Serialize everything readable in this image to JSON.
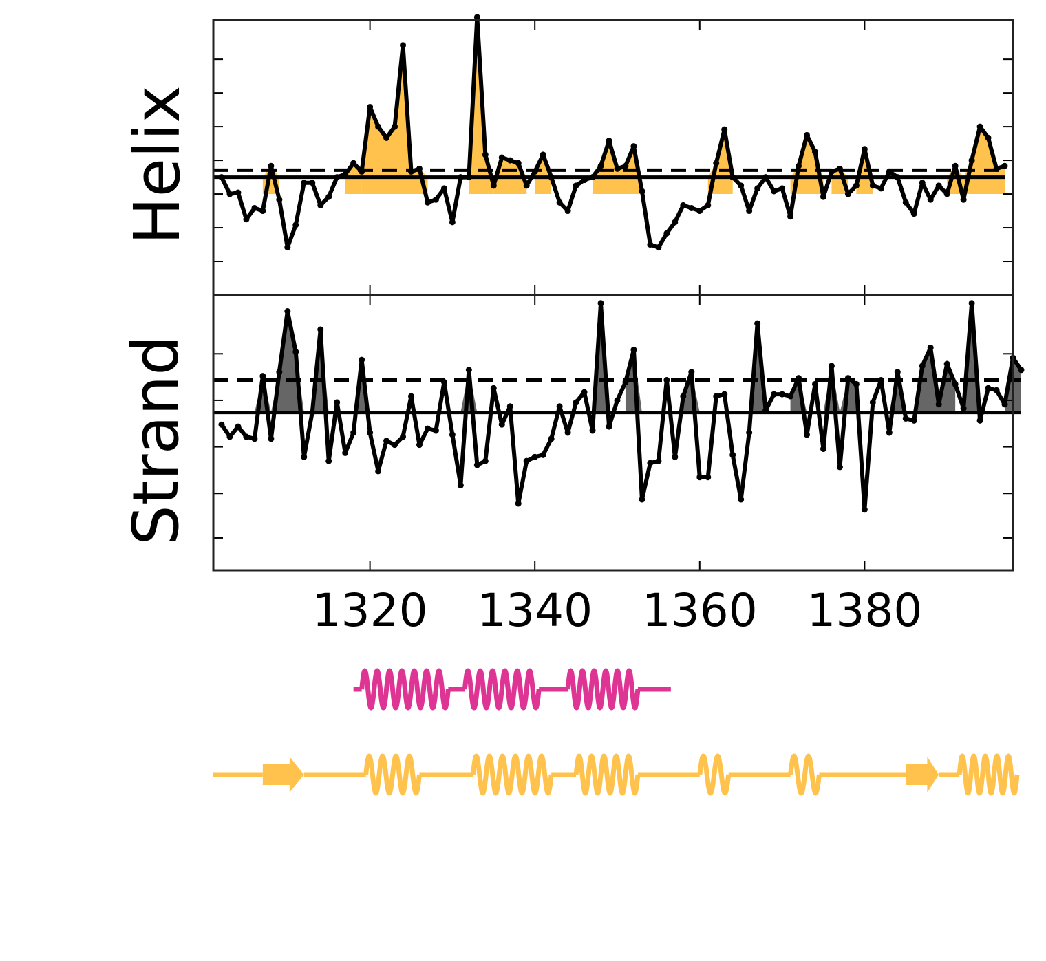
{
  "chart_data": [
    {
      "type": "line",
      "ylabel": "Helix",
      "colors": {
        "line": "#000000",
        "fill": "#ffc34d"
      },
      "xlim": [
        1301,
        1398
      ],
      "ylim": [
        -0.42,
        0.56
      ],
      "yticks": [
        -0.3,
        -0.18,
        -0.06,
        0.06,
        0.18,
        0.3,
        0.42
      ],
      "threshold_solid": 0.0,
      "threshold_dashed": 0.025,
      "x_start": 1302,
      "values": [
        0.0,
        -0.06,
        -0.055,
        -0.15,
        -0.11,
        -0.12,
        0.04,
        -0.08,
        -0.25,
        -0.17,
        -0.02,
        -0.02,
        -0.1,
        -0.07,
        0.0,
        0.01,
        0.05,
        0.02,
        0.25,
        0.18,
        0.14,
        0.18,
        0.47,
        0.02,
        0.03,
        -0.09,
        -0.08,
        -0.04,
        -0.16,
        0.0,
        0.0,
        0.57,
        0.08,
        -0.03,
        0.07,
        0.06,
        0.05,
        -0.03,
        0.02,
        0.08,
        0.0,
        -0.09,
        -0.12,
        -0.03,
        -0.01,
        0.0,
        0.04,
        0.13,
        0.03,
        0.04,
        0.11,
        -0.05,
        -0.24,
        -0.25,
        -0.2,
        -0.16,
        -0.1,
        -0.11,
        -0.12,
        -0.1,
        0.05,
        0.17,
        0.0,
        -0.03,
        -0.12,
        -0.04,
        0.0,
        -0.05,
        -0.04,
        -0.14,
        0.04,
        0.15,
        0.09,
        -0.07,
        0.02,
        0.03,
        -0.06,
        -0.03,
        0.1,
        -0.03,
        -0.04,
        0.02,
        0.0,
        -0.09,
        -0.13,
        -0.02,
        -0.08,
        -0.03,
        -0.06,
        0.04,
        -0.08,
        0.06,
        0.18,
        0.14,
        0.03,
        0.04
      ]
    },
    {
      "type": "line",
      "ylabel": "Strand",
      "colors": {
        "line": "#000000",
        "fill": "#666666"
      },
      "xlim": [
        1301,
        1398
      ],
      "ylim": [
        -0.78,
        0.58
      ],
      "yticks": [
        -0.62,
        -0.4,
        -0.17,
        0.06,
        0.29
      ],
      "threshold_solid": 0.0,
      "threshold_dashed": 0.16,
      "x_start": 1302,
      "values": [
        -0.06,
        -0.12,
        -0.07,
        -0.12,
        -0.13,
        0.18,
        -0.13,
        0.2,
        0.5,
        0.3,
        -0.22,
        0.0,
        0.41,
        -0.24,
        0.05,
        -0.2,
        -0.1,
        0.26,
        -0.1,
        -0.29,
        -0.14,
        -0.16,
        -0.12,
        0.08,
        -0.16,
        -0.08,
        -0.09,
        0.15,
        -0.11,
        -0.36,
        0.21,
        -0.26,
        -0.24,
        0.12,
        -0.06,
        0.03,
        -0.45,
        -0.24,
        -0.22,
        -0.21,
        -0.13,
        0.03,
        -0.1,
        0.05,
        0.1,
        -0.09,
        0.54,
        -0.07,
        0.06,
        0.15,
        0.31,
        -0.43,
        -0.25,
        -0.24,
        0.16,
        -0.22,
        0.08,
        0.2,
        -0.32,
        -0.32,
        0.08,
        0.09,
        -0.21,
        -0.43,
        -0.1,
        0.44,
        0.01,
        0.09,
        0.09,
        0.08,
        0.17,
        -0.11,
        0.14,
        -0.18,
        0.23,
        -0.27,
        0.17,
        0.14,
        -0.48,
        0.05,
        0.16,
        -0.1,
        0.2,
        -0.03,
        -0.04,
        0.23,
        0.32,
        0.04,
        0.24,
        0.14,
        0.02,
        0.54,
        -0.04,
        0.12,
        0.11,
        0.04,
        0.27,
        0.21
      ]
    }
  ],
  "x_axis": {
    "ticks": [
      1320,
      1340,
      1360,
      1380
    ],
    "tick_labels": [
      "1320",
      "1340",
      "1360",
      "1380"
    ]
  },
  "tracks": [
    {
      "name": "pink",
      "color": "#de3595",
      "segments": [
        {
          "kind": "line",
          "from": 1318,
          "to": 1319
        },
        {
          "kind": "helix",
          "from": 1319,
          "to": 1329.5
        },
        {
          "kind": "line",
          "from": 1329.5,
          "to": 1331.5
        },
        {
          "kind": "helix",
          "from": 1331.5,
          "to": 1340.5
        },
        {
          "kind": "line",
          "from": 1340.5,
          "to": 1344
        },
        {
          "kind": "helix",
          "from": 1344,
          "to": 1352.5
        },
        {
          "kind": "line",
          "from": 1352.5,
          "to": 1356.5
        }
      ]
    },
    {
      "name": "yellow",
      "color": "#ffc34d",
      "segments": [
        {
          "kind": "line",
          "from": 1301,
          "to": 1307
        },
        {
          "kind": "strand",
          "from": 1307,
          "to": 1312
        },
        {
          "kind": "line",
          "from": 1312,
          "to": 1319.5
        },
        {
          "kind": "helix",
          "from": 1319.5,
          "to": 1326
        },
        {
          "kind": "line",
          "from": 1326,
          "to": 1332.5
        },
        {
          "kind": "helix",
          "from": 1332.5,
          "to": 1342
        },
        {
          "kind": "line",
          "from": 1342,
          "to": 1345
        },
        {
          "kind": "helix",
          "from": 1345,
          "to": 1352.5
        },
        {
          "kind": "line",
          "from": 1352.5,
          "to": 1360
        },
        {
          "kind": "helix",
          "from": 1360,
          "to": 1363.5
        },
        {
          "kind": "line",
          "from": 1363.5,
          "to": 1371
        },
        {
          "kind": "helix",
          "from": 1371,
          "to": 1374.5
        },
        {
          "kind": "line",
          "from": 1374.5,
          "to": 1385
        },
        {
          "kind": "strand",
          "from": 1385,
          "to": 1389
        },
        {
          "kind": "line",
          "from": 1389,
          "to": 1391.5
        },
        {
          "kind": "helix",
          "from": 1391.5,
          "to": 1398.5
        }
      ]
    }
  ]
}
